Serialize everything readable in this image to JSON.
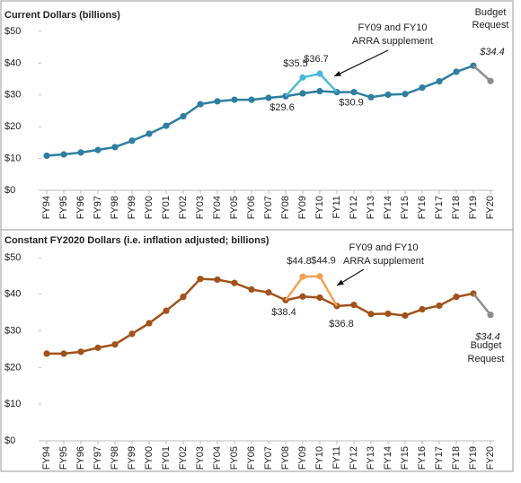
{
  "chart_data": [
    {
      "type": "line",
      "title": "Current Dollars (billions)",
      "categories": [
        "FY94",
        "FY95",
        "FY96",
        "FY97",
        "FY98",
        "FY99",
        "FY00",
        "FY01",
        "FY02",
        "FY03",
        "FY04",
        "FY05",
        "FY06",
        "FY07",
        "FY08",
        "FY09",
        "FY10",
        "FY11",
        "FY12",
        "FY13",
        "FY14",
        "FY15",
        "FY16",
        "FY17",
        "FY18",
        "FY19",
        "FY20"
      ],
      "series": [
        {
          "color": "#2e7ea0",
          "values": [
            10.9,
            11.3,
            11.9,
            12.7,
            13.6,
            15.6,
            17.8,
            20.3,
            23.3,
            27.1,
            28.0,
            28.5,
            28.5,
            29.1,
            29.6,
            30.5,
            31.2,
            30.9,
            30.9,
            29.3,
            30.1,
            30.3,
            32.3,
            34.3,
            37.3,
            39.2,
            null
          ],
          "value_labels": [
            null,
            null,
            null,
            null,
            null,
            null,
            null,
            null,
            null,
            null,
            null,
            null,
            null,
            null,
            "$29.6",
            null,
            null,
            "$30.9",
            null,
            null,
            null,
            null,
            null,
            null,
            null,
            null,
            null
          ]
        },
        {
          "color": "#4bb9d6",
          "values": [
            null,
            null,
            null,
            null,
            null,
            null,
            null,
            null,
            null,
            null,
            null,
            null,
            null,
            null,
            null,
            35.5,
            36.7,
            null,
            null,
            null,
            null,
            null,
            null,
            null,
            null,
            null,
            null
          ],
          "value_labels": [
            null,
            null,
            null,
            null,
            null,
            null,
            null,
            null,
            null,
            null,
            null,
            null,
            null,
            null,
            null,
            "$35.5",
            "$36.7",
            null,
            null,
            null,
            null,
            null,
            null,
            null,
            null,
            null,
            null
          ]
        },
        {
          "color": "#8c8c8c",
          "values": [
            null,
            null,
            null,
            null,
            null,
            null,
            null,
            null,
            null,
            null,
            null,
            null,
            null,
            null,
            null,
            null,
            null,
            null,
            null,
            null,
            null,
            null,
            null,
            null,
            null,
            null,
            34.4
          ],
          "value_labels": [
            null,
            null,
            null,
            null,
            null,
            null,
            null,
            null,
            null,
            null,
            null,
            null,
            null,
            null,
            null,
            null,
            null,
            null,
            null,
            null,
            null,
            null,
            null,
            null,
            null,
            null,
            "$34.4"
          ]
        }
      ],
      "annotations": [
        [
          "FY09 and FY10",
          "ARRA supplement"
        ],
        [
          "Budget",
          "Request"
        ]
      ],
      "ylim": [
        0,
        50
      ],
      "yticks": [
        {
          "value": 0,
          "label": "$0"
        },
        {
          "value": 10,
          "label": "$10"
        },
        {
          "value": 20,
          "label": "$20"
        },
        {
          "value": 30,
          "label": "$30"
        },
        {
          "value": 40,
          "label": "$40"
        },
        {
          "value": 50,
          "label": "$50"
        }
      ]
    },
    {
      "type": "line",
      "title": "Constant FY2020 Dollars (i.e. inflation adjusted; billions)",
      "categories": [
        "FY94",
        "FY95",
        "FY96",
        "FY97",
        "FY98",
        "FY99",
        "FY00",
        "FY01",
        "FY02",
        "FY03",
        "FY04",
        "FY05",
        "FY06",
        "FY07",
        "FY08",
        "FY09",
        "FY10",
        "FY11",
        "FY12",
        "FY13",
        "FY14",
        "FY15",
        "FY16",
        "FY17",
        "FY18",
        "FY19",
        "FY20"
      ],
      "series": [
        {
          "color": "#a0521a",
          "values": [
            23.8,
            23.8,
            24.3,
            25.4,
            26.3,
            29.2,
            32.1,
            35.5,
            39.3,
            44.2,
            44.0,
            43.1,
            41.3,
            40.5,
            38.4,
            39.4,
            39.1,
            36.8,
            37.1,
            34.6,
            34.7,
            34.2,
            35.9,
            36.9,
            39.3,
            40.2,
            null
          ],
          "value_labels": [
            null,
            null,
            null,
            null,
            null,
            null,
            null,
            null,
            null,
            null,
            null,
            null,
            null,
            null,
            "$38.4",
            null,
            null,
            "$36.8",
            null,
            null,
            null,
            null,
            null,
            null,
            null,
            null,
            null
          ]
        },
        {
          "color": "#f2a253",
          "values": [
            null,
            null,
            null,
            null,
            null,
            null,
            null,
            null,
            null,
            null,
            null,
            null,
            null,
            null,
            null,
            44.8,
            44.9,
            null,
            null,
            null,
            null,
            null,
            null,
            null,
            null,
            null,
            null
          ],
          "value_labels": [
            null,
            null,
            null,
            null,
            null,
            null,
            null,
            null,
            null,
            null,
            null,
            null,
            null,
            null,
            null,
            "$44.8",
            "$44.9",
            null,
            null,
            null,
            null,
            null,
            null,
            null,
            null,
            null,
            null
          ]
        },
        {
          "color": "#8c8c8c",
          "values": [
            null,
            null,
            null,
            null,
            null,
            null,
            null,
            null,
            null,
            null,
            null,
            null,
            null,
            null,
            null,
            null,
            null,
            null,
            null,
            null,
            null,
            null,
            null,
            null,
            null,
            null,
            34.4
          ],
          "value_labels": [
            null,
            null,
            null,
            null,
            null,
            null,
            null,
            null,
            null,
            null,
            null,
            null,
            null,
            null,
            null,
            null,
            null,
            null,
            null,
            null,
            null,
            null,
            null,
            null,
            null,
            null,
            "$34.4"
          ]
        }
      ],
      "annotations": [
        [
          "FY09 and FY10",
          "ARRA supplement"
        ],
        [
          "Budget",
          "Request"
        ]
      ],
      "ylim": [
        0,
        50
      ],
      "yticks": [
        {
          "value": 0,
          "label": "$0"
        },
        {
          "value": 10,
          "label": "$10"
        },
        {
          "value": 20,
          "label": "$20"
        },
        {
          "value": 30,
          "label": "$30"
        },
        {
          "value": 40,
          "label": "$40"
        },
        {
          "value": 50,
          "label": "$50"
        }
      ]
    }
  ]
}
